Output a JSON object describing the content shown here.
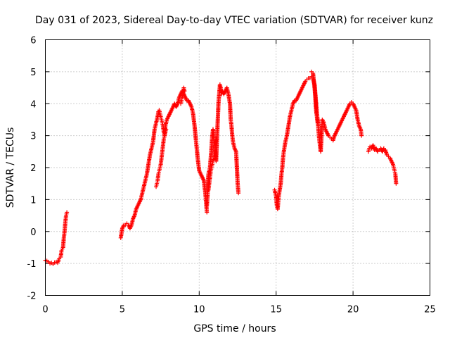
{
  "chart_data": {
    "type": "scatter",
    "title": "Day 031 of 2023, Sidereal Day-to-day VTEC variation (SDTVAR) for receiver kunz",
    "xlabel": "GPS time / hours",
    "ylabel": "SDTVAR / TECUs",
    "xlim": [
      0,
      25
    ],
    "ylim": [
      -2,
      6
    ],
    "xticks": [
      "0",
      "5",
      "10",
      "15",
      "20",
      "25"
    ],
    "yticks": [
      "-2",
      "-1",
      "0",
      "1",
      "2",
      "3",
      "4",
      "5",
      "6"
    ],
    "grid": true,
    "marker": "+",
    "marker_color": "#ff0000",
    "series": [
      {
        "name": "SDTVAR",
        "segments": [
          [
            [
              0.0,
              -0.9
            ],
            [
              0.1,
              -0.92
            ],
            [
              0.2,
              -0.95
            ],
            [
              0.3,
              -1.0
            ],
            [
              0.4,
              -0.98
            ],
            [
              0.5,
              -1.02
            ],
            [
              0.6,
              -0.97
            ],
            [
              0.7,
              -0.96
            ],
            [
              0.8,
              -0.98
            ],
            [
              0.9,
              -0.85
            ],
            [
              1.0,
              -0.8
            ],
            [
              1.05,
              -0.6
            ],
            [
              1.1,
              -0.55
            ],
            [
              1.15,
              -0.5
            ],
            [
              1.2,
              -0.2
            ],
            [
              1.25,
              0.0
            ],
            [
              1.3,
              0.3
            ],
            [
              1.35,
              0.5
            ],
            [
              1.4,
              0.6
            ]
          ],
          [
            [
              4.9,
              -0.2
            ],
            [
              5.0,
              0.1
            ],
            [
              5.1,
              0.2
            ],
            [
              5.2,
              0.2
            ],
            [
              5.3,
              0.25
            ],
            [
              5.4,
              0.2
            ],
            [
              5.5,
              0.1
            ],
            [
              5.6,
              0.2
            ],
            [
              5.7,
              0.4
            ],
            [
              5.8,
              0.5
            ],
            [
              5.9,
              0.7
            ],
            [
              6.0,
              0.8
            ],
            [
              6.1,
              0.9
            ],
            [
              6.2,
              1.0
            ],
            [
              6.3,
              1.2
            ],
            [
              6.4,
              1.4
            ],
            [
              6.5,
              1.6
            ],
            [
              6.6,
              1.8
            ],
            [
              6.7,
              2.1
            ],
            [
              6.8,
              2.4
            ],
            [
              6.9,
              2.6
            ],
            [
              7.0,
              2.8
            ],
            [
              7.1,
              3.2
            ],
            [
              7.2,
              3.4
            ],
            [
              7.3,
              3.6
            ],
            [
              7.35,
              3.75
            ],
            [
              7.4,
              3.8
            ],
            [
              7.45,
              3.7
            ],
            [
              7.5,
              3.6
            ],
            [
              7.55,
              3.5
            ],
            [
              7.6,
              3.4
            ],
            [
              7.65,
              3.3
            ],
            [
              7.7,
              3.1
            ],
            [
              7.75,
              3.0
            ],
            [
              7.8,
              3.3
            ],
            [
              7.9,
              3.5
            ],
            [
              8.0,
              3.6
            ],
            [
              8.1,
              3.7
            ],
            [
              8.2,
              3.8
            ],
            [
              8.3,
              3.9
            ],
            [
              8.4,
              4.0
            ],
            [
              8.5,
              3.9
            ],
            [
              8.6,
              4.0
            ],
            [
              8.7,
              4.2
            ],
            [
              8.8,
              4.3
            ],
            [
              8.9,
              4.4
            ],
            [
              9.0,
              4.3
            ],
            [
              9.1,
              4.2
            ],
            [
              9.2,
              4.1
            ],
            [
              9.3,
              4.1
            ],
            [
              9.4,
              4.0
            ],
            [
              9.5,
              3.9
            ],
            [
              9.6,
              3.7
            ],
            [
              9.7,
              3.3
            ],
            [
              9.8,
              2.8
            ],
            [
              9.9,
              2.3
            ],
            [
              10.0,
              1.9
            ],
            [
              10.1,
              1.8
            ],
            [
              10.2,
              1.7
            ],
            [
              10.3,
              1.6
            ],
            [
              10.4,
              1.2
            ],
            [
              10.45,
              0.9
            ],
            [
              10.5,
              0.6
            ]
          ],
          [
            [
              7.2,
              1.4
            ],
            [
              7.25,
              1.5
            ],
            [
              7.3,
              1.6
            ],
            [
              7.35,
              1.8
            ],
            [
              7.4,
              1.9
            ],
            [
              7.45,
              2.0
            ],
            [
              7.5,
              2.1
            ],
            [
              7.55,
              2.3
            ],
            [
              7.6,
              2.5
            ],
            [
              7.65,
              2.7
            ],
            [
              7.7,
              2.9
            ],
            [
              7.75,
              3.0
            ],
            [
              7.8,
              3.1
            ],
            [
              7.85,
              3.2
            ]
          ],
          [
            [
              8.8,
              4.0
            ],
            [
              8.85,
              4.1
            ],
            [
              8.9,
              4.2
            ],
            [
              8.95,
              4.3
            ],
            [
              9.0,
              4.5
            ],
            [
              9.05,
              4.4
            ]
          ],
          [
            [
              10.5,
              0.8
            ],
            [
              10.55,
              1.2
            ],
            [
              10.6,
              1.8
            ],
            [
              10.7,
              2.0
            ],
            [
              10.75,
              2.3
            ],
            [
              10.8,
              2.6
            ],
            [
              10.85,
              3.0
            ],
            [
              10.9,
              3.2
            ],
            [
              10.95,
              2.9
            ],
            [
              11.0,
              2.7
            ],
            [
              11.05,
              2.5
            ],
            [
              11.1,
              2.2
            ],
            [
              11.15,
              2.8
            ],
            [
              11.2,
              3.4
            ],
            [
              11.25,
              4.0
            ],
            [
              11.3,
              4.3
            ],
            [
              11.35,
              4.6
            ],
            [
              11.4,
              4.5
            ],
            [
              11.45,
              4.3
            ],
            [
              11.5,
              4.4
            ],
            [
              11.6,
              4.3
            ],
            [
              11.7,
              4.4
            ],
            [
              11.8,
              4.5
            ],
            [
              11.9,
              4.3
            ],
            [
              12.0,
              4.0
            ],
            [
              12.05,
              3.5
            ],
            [
              12.1,
              3.3
            ],
            [
              12.15,
              3.0
            ],
            [
              12.2,
              2.8
            ],
            [
              12.3,
              2.6
            ],
            [
              12.4,
              2.5
            ],
            [
              12.45,
              2.0
            ],
            [
              12.5,
              1.5
            ],
            [
              12.55,
              1.2
            ]
          ],
          [
            [
              10.6,
              1.3
            ],
            [
              10.65,
              1.5
            ],
            [
              10.7,
              1.7
            ],
            [
              10.75,
              1.9
            ],
            [
              10.8,
              2.0
            ],
            [
              10.85,
              2.1
            ],
            [
              10.9,
              2.2
            ],
            [
              10.95,
              2.3
            ],
            [
              11.0,
              2.5
            ],
            [
              11.05,
              2.7
            ],
            [
              11.1,
              2.9
            ]
          ],
          [
            [
              14.9,
              1.3
            ],
            [
              15.0,
              1.1
            ],
            [
              15.05,
              0.8
            ],
            [
              15.1,
              0.7
            ],
            [
              15.15,
              1.0
            ],
            [
              15.2,
              1.2
            ],
            [
              15.3,
              1.5
            ],
            [
              15.35,
              1.8
            ],
            [
              15.4,
              2.0
            ],
            [
              15.45,
              2.3
            ],
            [
              15.5,
              2.5
            ],
            [
              15.6,
              2.8
            ],
            [
              15.7,
              3.0
            ],
            [
              15.8,
              3.3
            ],
            [
              15.9,
              3.6
            ],
            [
              16.0,
              3.8
            ],
            [
              16.1,
              4.0
            ],
            [
              16.2,
              4.1
            ],
            [
              16.3,
              4.1
            ],
            [
              16.4,
              4.2
            ],
            [
              16.5,
              4.3
            ],
            [
              16.6,
              4.4
            ],
            [
              16.7,
              4.5
            ],
            [
              16.8,
              4.6
            ],
            [
              16.9,
              4.7
            ],
            [
              17.0,
              4.75
            ],
            [
              17.1,
              4.8
            ],
            [
              17.2,
              4.8
            ],
            [
              17.3,
              4.85
            ],
            [
              17.4,
              4.8
            ],
            [
              17.5,
              4.6
            ],
            [
              17.55,
              4.3
            ],
            [
              17.6,
              4.0
            ],
            [
              17.65,
              3.7
            ],
            [
              17.7,
              3.5
            ],
            [
              17.75,
              3.2
            ],
            [
              17.8,
              2.9
            ],
            [
              17.85,
              2.7
            ],
            [
              17.9,
              2.5
            ],
            [
              17.95,
              3.0
            ],
            [
              18.0,
              3.5
            ],
            [
              18.1,
              3.4
            ],
            [
              18.2,
              3.2
            ],
            [
              18.3,
              3.1
            ],
            [
              18.4,
              3.0
            ],
            [
              18.5,
              2.95
            ],
            [
              18.6,
              2.9
            ],
            [
              18.7,
              2.85
            ],
            [
              18.8,
              3.0
            ],
            [
              18.9,
              3.1
            ],
            [
              19.0,
              3.2
            ],
            [
              19.1,
              3.3
            ],
            [
              19.2,
              3.4
            ],
            [
              19.3,
              3.5
            ],
            [
              19.4,
              3.6
            ],
            [
              19.5,
              3.7
            ],
            [
              19.6,
              3.8
            ],
            [
              19.7,
              3.9
            ],
            [
              19.8,
              4.0
            ],
            [
              19.9,
              4.05
            ],
            [
              20.0,
              4.0
            ],
            [
              20.1,
              3.9
            ],
            [
              20.2,
              3.8
            ],
            [
              20.3,
              3.5
            ],
            [
              20.4,
              3.3
            ],
            [
              20.5,
              3.2
            ],
            [
              20.55,
              3.0
            ]
          ],
          [
            [
              17.3,
              5.0
            ],
            [
              17.4,
              4.95
            ],
            [
              17.45,
              4.7
            ],
            [
              17.5,
              4.5
            ],
            [
              17.55,
              4.2
            ],
            [
              17.6,
              3.8
            ],
            [
              17.7,
              3.4
            ]
          ],
          [
            [
              21.0,
              2.5
            ],
            [
              21.05,
              2.6
            ],
            [
              21.1,
              2.65
            ],
            [
              21.2,
              2.6
            ],
            [
              21.3,
              2.7
            ],
            [
              21.4,
              2.55
            ],
            [
              21.5,
              2.6
            ],
            [
              21.6,
              2.5
            ],
            [
              21.7,
              2.55
            ],
            [
              21.8,
              2.6
            ],
            [
              21.9,
              2.5
            ],
            [
              22.0,
              2.6
            ],
            [
              22.1,
              2.55
            ],
            [
              22.2,
              2.4
            ],
            [
              22.3,
              2.35
            ],
            [
              22.4,
              2.3
            ],
            [
              22.5,
              2.2
            ],
            [
              22.6,
              2.1
            ],
            [
              22.65,
              2.0
            ],
            [
              22.7,
              1.9
            ],
            [
              22.75,
              1.8
            ],
            [
              22.8,
              1.5
            ]
          ]
        ]
      }
    ]
  }
}
